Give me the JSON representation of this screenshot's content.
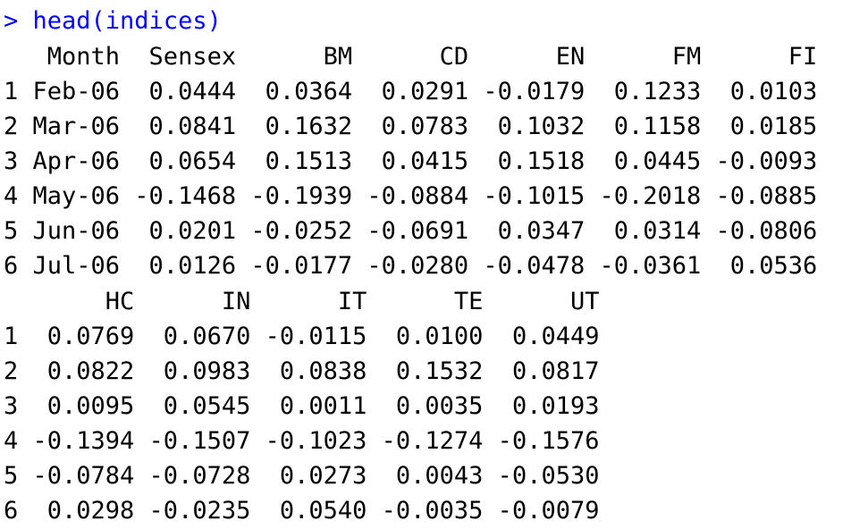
{
  "console": {
    "prompt_symbol": "> ",
    "command": "head(indices)",
    "output": [
      "   Month  Sensex      BM      CD      EN      FM      FI",
      "1 Feb-06  0.0444  0.0364  0.0291 -0.0179  0.1233  0.0103",
      "2 Mar-06  0.0841  0.1632  0.0783  0.1032  0.1158  0.0185",
      "3 Apr-06  0.0654  0.1513  0.0415  0.1518  0.0445 -0.0093",
      "4 May-06 -0.1468 -0.1939 -0.0884 -0.1015 -0.2018 -0.0885",
      "5 Jun-06  0.0201 -0.0252 -0.0691  0.0347  0.0314 -0.0806",
      "6 Jul-06  0.0126 -0.0177 -0.0280 -0.0478 -0.0361  0.0536",
      "       HC      IN      IT      TE      UT",
      "1  0.0769  0.0670 -0.0115  0.0100  0.0449",
      "2  0.0822  0.0983  0.0838  0.1532  0.0817",
      "3  0.0095  0.0545  0.0011  0.0035  0.0193",
      "4 -0.1394 -0.1507 -0.1023 -0.1274 -0.1576",
      "5 -0.0784 -0.0728  0.0273  0.0043 -0.0530",
      "6  0.0298 -0.0235  0.0540 -0.0035 -0.0079"
    ]
  },
  "colors": {
    "command": "#0000ff",
    "output": "#000000",
    "background": "#ffffff"
  }
}
